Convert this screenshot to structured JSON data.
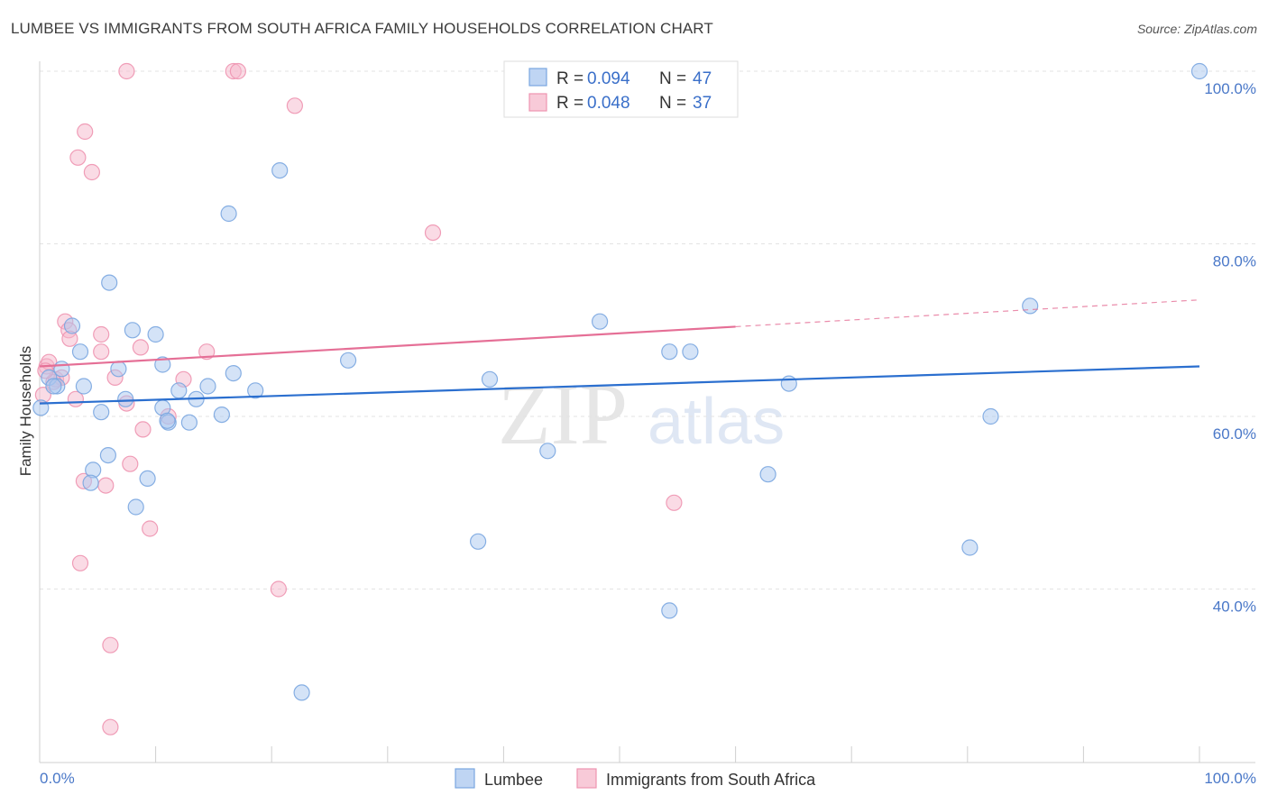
{
  "header": {
    "title": "LUMBEE VS IMMIGRANTS FROM SOUTH AFRICA FAMILY HOUSEHOLDS CORRELATION CHART",
    "source": "Source: ZipAtlas.com"
  },
  "colors": {
    "lumbee_fill": "#a9c7ef",
    "lumbee_stroke": "#7aa6e0",
    "lumbee_line": "#2b6fcf",
    "sa_fill": "#f6b8cb",
    "sa_stroke": "#ee94b0",
    "sa_line": "#e56f96",
    "axis_label_blue": "#4a78c8"
  },
  "legend": {
    "series": [
      {
        "r_label": "R = ",
        "r_value": "0.094",
        "n_label": "N = ",
        "n_value": "47"
      },
      {
        "r_label": "R = ",
        "r_value": "0.048",
        "n_label": "N = ",
        "n_value": "37"
      }
    ]
  },
  "bottom_legend": {
    "lumbee": "Lumbee",
    "sa": "Immigrants from South Africa"
  },
  "watermark": {
    "zip": "ZIP",
    "atlas": "atlas"
  },
  "chart_data": {
    "type": "scatter",
    "title": "LUMBEE VS IMMIGRANTS FROM SOUTH AFRICA FAMILY HOUSEHOLDS CORRELATION CHART",
    "xlabel": "",
    "ylabel": "Family Households",
    "xlim": [
      0,
      100
    ],
    "ylim": [
      20,
      102
    ],
    "y_ticks": [
      40,
      60,
      80,
      100
    ],
    "y_tick_labels": [
      "40.0%",
      "60.0%",
      "80.0%",
      "100.0%"
    ],
    "x_tick_labels": [
      "0.0%",
      "100.0%"
    ],
    "series": [
      {
        "name": "Lumbee",
        "r": 0.094,
        "n": 47,
        "trend": {
          "x0": 0,
          "y0": 61.5,
          "x1": 100,
          "y1": 65.8
        },
        "points": [
          [
            0.1,
            61.0
          ],
          [
            0.8,
            64.5
          ],
          [
            1.5,
            63.5
          ],
          [
            1.9,
            65.5
          ],
          [
            1.2,
            63.5
          ],
          [
            2.8,
            70.5
          ],
          [
            3.5,
            67.5
          ],
          [
            3.8,
            63.5
          ],
          [
            5.3,
            60.5
          ],
          [
            4.6,
            53.8
          ],
          [
            4.4,
            52.3
          ],
          [
            6.0,
            75.5
          ],
          [
            5.9,
            55.5
          ],
          [
            6.8,
            65.5
          ],
          [
            7.4,
            62.0
          ],
          [
            8.0,
            70.0
          ],
          [
            8.3,
            49.5
          ],
          [
            9.3,
            52.8
          ],
          [
            10.0,
            69.5
          ],
          [
            10.6,
            66.0
          ],
          [
            10.6,
            61.0
          ],
          [
            11.1,
            59.3
          ],
          [
            12.0,
            63.0
          ],
          [
            12.9,
            59.3
          ],
          [
            13.5,
            62.0
          ],
          [
            14.5,
            63.5
          ],
          [
            15.7,
            60.2
          ],
          [
            16.3,
            83.5
          ],
          [
            16.7,
            65.0
          ],
          [
            18.6,
            63.0
          ],
          [
            20.7,
            88.5
          ],
          [
            22.6,
            28.0
          ],
          [
            26.6,
            66.5
          ],
          [
            37.8,
            45.5
          ],
          [
            38.8,
            64.3
          ],
          [
            43.8,
            56.0
          ],
          [
            48.3,
            71.0
          ],
          [
            54.3,
            67.5
          ],
          [
            56.1,
            67.5
          ],
          [
            54.3,
            37.5
          ],
          [
            62.8,
            53.3
          ],
          [
            64.6,
            63.8
          ],
          [
            80.2,
            44.8
          ],
          [
            82.0,
            60.0
          ],
          [
            85.4,
            72.8
          ],
          [
            100.0,
            100.0
          ],
          [
            11.0,
            59.5
          ]
        ]
      },
      {
        "name": "Immigrants from South Africa",
        "r": 0.048,
        "n": 37,
        "trend": {
          "x0": 0,
          "y0": 65.8,
          "x1": 60,
          "y1": 70.4,
          "dash_x1": 100,
          "dash_y1": 73.5
        },
        "points": [
          [
            0.3,
            62.5
          ],
          [
            0.6,
            65.8
          ],
          [
            0.8,
            66.3
          ],
          [
            1.4,
            64.3
          ],
          [
            1.9,
            64.5
          ],
          [
            2.2,
            71.0
          ],
          [
            2.5,
            70.0
          ],
          [
            2.6,
            69.0
          ],
          [
            3.1,
            62.0
          ],
          [
            3.3,
            90.0
          ],
          [
            3.5,
            43.0
          ],
          [
            3.8,
            52.5
          ],
          [
            3.9,
            93.0
          ],
          [
            4.5,
            88.3
          ],
          [
            5.3,
            67.5
          ],
          [
            5.3,
            69.5
          ],
          [
            5.7,
            52.0
          ],
          [
            6.1,
            33.5
          ],
          [
            6.1,
            24.0
          ],
          [
            6.5,
            64.5
          ],
          [
            7.5,
            100.0
          ],
          [
            7.5,
            61.5
          ],
          [
            7.8,
            54.5
          ],
          [
            8.7,
            68.0
          ],
          [
            8.9,
            58.5
          ],
          [
            9.5,
            47.0
          ],
          [
            11.1,
            60.0
          ],
          [
            12.4,
            64.3
          ],
          [
            14.4,
            67.5
          ],
          [
            16.7,
            100.0
          ],
          [
            17.1,
            100.0
          ],
          [
            20.6,
            40.0
          ],
          [
            22.0,
            96.0
          ],
          [
            33.9,
            81.3
          ],
          [
            54.7,
            50.0
          ],
          [
            1.2,
            64.0
          ],
          [
            0.5,
            65.3
          ]
        ]
      }
    ]
  }
}
